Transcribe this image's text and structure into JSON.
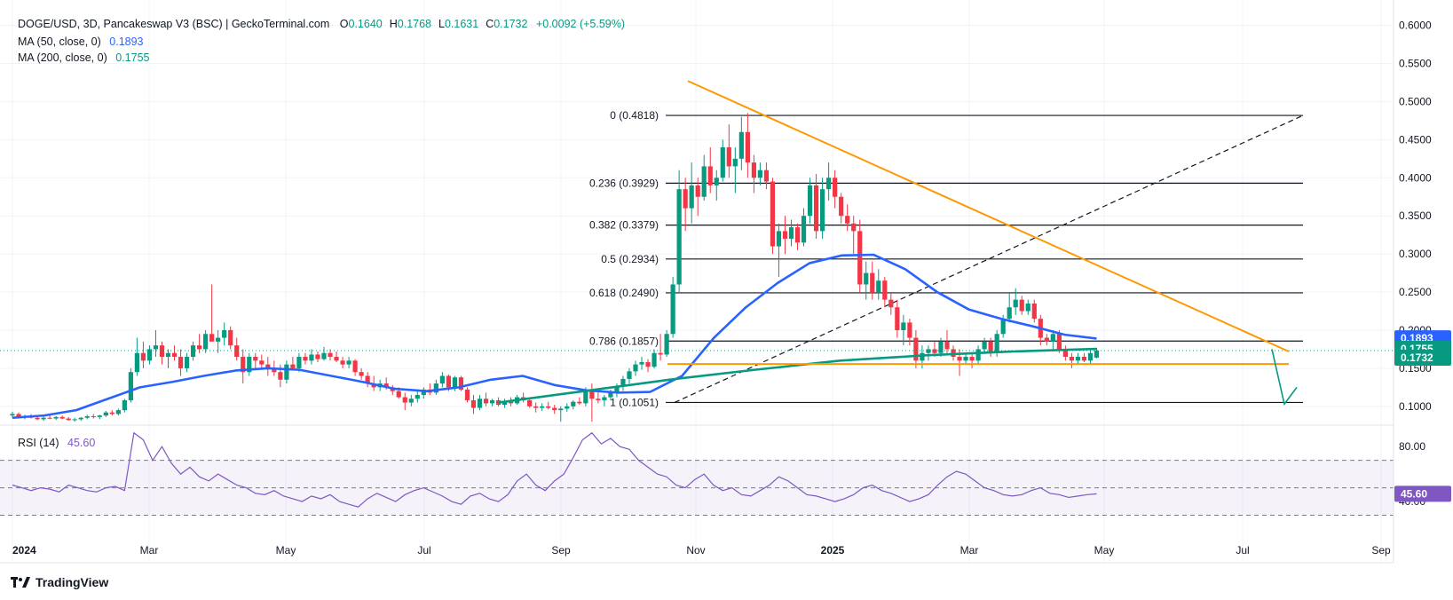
{
  "header": {
    "symbol": "DOGE/USD, 3D, Pancakeswap V3 (BSC) | GeckoTerminal.com",
    "ohlc": [
      {
        "k": "O",
        "v": "0.1640"
      },
      {
        "k": "H",
        "v": "0.1768"
      },
      {
        "k": "L",
        "v": "0.1631"
      },
      {
        "k": "C",
        "v": "0.1732"
      }
    ],
    "change": "+0.0092 (+5.59%)",
    "ma50": {
      "label": "MA (50, close, 0)",
      "value": "0.1893"
    },
    "ma200": {
      "label": "MA (200, close, 0)",
      "value": "0.1755"
    },
    "rsi": {
      "label": "RSI (14)",
      "value": "45.60"
    }
  },
  "brand": "TradingView",
  "colors": {
    "up": "#089981",
    "down": "#f23645",
    "ma50": "#2962ff",
    "ma200": "#089981",
    "orange": "#ff9800",
    "rsi": "#7e57c2",
    "grid": "#f0f3fa"
  },
  "price_axis": {
    "labels": [
      "0.6000",
      "0.5500",
      "0.5000",
      "0.4500",
      "0.4000",
      "0.3500",
      "0.3000",
      "0.2500",
      "0.2000",
      "0.1500",
      "0.1000"
    ],
    "badges": [
      {
        "text": "0.1893",
        "color": "#2962ff"
      },
      {
        "text": "0.1755",
        "color": "#089981"
      },
      {
        "text": "0.1732",
        "color": "#089981"
      }
    ]
  },
  "rsi_axis": {
    "labels": [
      "80.00",
      "40.00"
    ],
    "badge": "45.60"
  },
  "time_axis": [
    "2024",
    "Mar",
    "May",
    "Jul",
    "Sep",
    "Nov",
    "2025",
    "Mar",
    "May",
    "Jul",
    "Sep"
  ],
  "fib_levels": [
    {
      "label": "0 (0.4818)",
      "price": 0.4818
    },
    {
      "label": "0.236 (0.3929)",
      "price": 0.3929
    },
    {
      "label": "0.382 (0.3379)",
      "price": 0.3379
    },
    {
      "label": "0.5 (0.2934)",
      "price": 0.2934
    },
    {
      "label": "0.618 (0.2490)",
      "price": 0.249
    },
    {
      "label": "0.786 (0.1857)",
      "price": 0.1857
    },
    {
      "label": "1 (0.1051)",
      "price": 0.1051
    }
  ],
  "chart_data": {
    "type": "candlestick",
    "timeframe": "3D",
    "ylim": [
      0.08,
      0.61
    ],
    "candles": [
      [
        0.088,
        0.093,
        0.085,
        0.09
      ],
      [
        0.09,
        0.092,
        0.084,
        0.086
      ],
      [
        0.086,
        0.089,
        0.083,
        0.087
      ],
      [
        0.087,
        0.09,
        0.084,
        0.085
      ],
      [
        0.085,
        0.088,
        0.082,
        0.083
      ],
      [
        0.083,
        0.087,
        0.081,
        0.085
      ],
      [
        0.085,
        0.088,
        0.083,
        0.084
      ],
      [
        0.084,
        0.087,
        0.082,
        0.086
      ],
      [
        0.086,
        0.088,
        0.083,
        0.084
      ],
      [
        0.084,
        0.086,
        0.081,
        0.082
      ],
      [
        0.082,
        0.085,
        0.08,
        0.083
      ],
      [
        0.083,
        0.086,
        0.081,
        0.085
      ],
      [
        0.085,
        0.089,
        0.083,
        0.087
      ],
      [
        0.087,
        0.09,
        0.084,
        0.086
      ],
      [
        0.086,
        0.089,
        0.083,
        0.088
      ],
      [
        0.088,
        0.094,
        0.086,
        0.092
      ],
      [
        0.092,
        0.095,
        0.088,
        0.09
      ],
      [
        0.09,
        0.097,
        0.088,
        0.095
      ],
      [
        0.095,
        0.11,
        0.092,
        0.108
      ],
      [
        0.108,
        0.15,
        0.105,
        0.145
      ],
      [
        0.145,
        0.19,
        0.14,
        0.17
      ],
      [
        0.17,
        0.185,
        0.15,
        0.16
      ],
      [
        0.16,
        0.18,
        0.155,
        0.175
      ],
      [
        0.175,
        0.2,
        0.165,
        0.18
      ],
      [
        0.18,
        0.185,
        0.155,
        0.165
      ],
      [
        0.165,
        0.175,
        0.15,
        0.17
      ],
      [
        0.17,
        0.18,
        0.16,
        0.165
      ],
      [
        0.165,
        0.175,
        0.14,
        0.15
      ],
      [
        0.15,
        0.17,
        0.145,
        0.165
      ],
      [
        0.165,
        0.185,
        0.16,
        0.18
      ],
      [
        0.18,
        0.195,
        0.17,
        0.175
      ],
      [
        0.175,
        0.2,
        0.17,
        0.195
      ],
      [
        0.195,
        0.26,
        0.19,
        0.185
      ],
      [
        0.185,
        0.2,
        0.17,
        0.19
      ],
      [
        0.19,
        0.21,
        0.18,
        0.2
      ],
      [
        0.2,
        0.205,
        0.175,
        0.18
      ],
      [
        0.18,
        0.19,
        0.16,
        0.165
      ],
      [
        0.165,
        0.175,
        0.13,
        0.145
      ],
      [
        0.145,
        0.17,
        0.14,
        0.165
      ],
      [
        0.165,
        0.17,
        0.15,
        0.16
      ],
      [
        0.16,
        0.168,
        0.15,
        0.155
      ],
      [
        0.155,
        0.165,
        0.14,
        0.15
      ],
      [
        0.15,
        0.16,
        0.14,
        0.145
      ],
      [
        0.145,
        0.155,
        0.125,
        0.135
      ],
      [
        0.135,
        0.16,
        0.13,
        0.155
      ],
      [
        0.155,
        0.165,
        0.15,
        0.15
      ],
      [
        0.15,
        0.17,
        0.145,
        0.165
      ],
      [
        0.165,
        0.17,
        0.155,
        0.16
      ],
      [
        0.16,
        0.175,
        0.155,
        0.168
      ],
      [
        0.168,
        0.172,
        0.158,
        0.162
      ],
      [
        0.162,
        0.178,
        0.16,
        0.17
      ],
      [
        0.17,
        0.175,
        0.16,
        0.165
      ],
      [
        0.165,
        0.172,
        0.158,
        0.16
      ],
      [
        0.16,
        0.165,
        0.15,
        0.155
      ],
      [
        0.155,
        0.165,
        0.15,
        0.16
      ],
      [
        0.16,
        0.162,
        0.14,
        0.145
      ],
      [
        0.145,
        0.15,
        0.135,
        0.14
      ],
      [
        0.14,
        0.145,
        0.125,
        0.13
      ],
      [
        0.13,
        0.14,
        0.12,
        0.125
      ],
      [
        0.125,
        0.135,
        0.12,
        0.13
      ],
      [
        0.13,
        0.138,
        0.122,
        0.125
      ],
      [
        0.125,
        0.128,
        0.115,
        0.12
      ],
      [
        0.12,
        0.125,
        0.11,
        0.112
      ],
      [
        0.112,
        0.118,
        0.095,
        0.105
      ],
      [
        0.105,
        0.115,
        0.1,
        0.11
      ],
      [
        0.11,
        0.12,
        0.105,
        0.115
      ],
      [
        0.115,
        0.125,
        0.11,
        0.122
      ],
      [
        0.122,
        0.13,
        0.115,
        0.118
      ],
      [
        0.118,
        0.135,
        0.115,
        0.13
      ],
      [
        0.13,
        0.145,
        0.125,
        0.14
      ],
      [
        0.14,
        0.142,
        0.12,
        0.125
      ],
      [
        0.125,
        0.14,
        0.12,
        0.138
      ],
      [
        0.138,
        0.14,
        0.12,
        0.122
      ],
      [
        0.122,
        0.125,
        0.105,
        0.108
      ],
      [
        0.108,
        0.115,
        0.09,
        0.098
      ],
      [
        0.098,
        0.115,
        0.095,
        0.11
      ],
      [
        0.11,
        0.118,
        0.1,
        0.104
      ],
      [
        0.104,
        0.11,
        0.1,
        0.108
      ],
      [
        0.108,
        0.112,
        0.1,
        0.102
      ],
      [
        0.102,
        0.11,
        0.098,
        0.106
      ],
      [
        0.106,
        0.112,
        0.1,
        0.104
      ],
      [
        0.104,
        0.115,
        0.102,
        0.112
      ],
      [
        0.112,
        0.118,
        0.105,
        0.108
      ],
      [
        0.108,
        0.11,
        0.098,
        0.1
      ],
      [
        0.1,
        0.105,
        0.092,
        0.098
      ],
      [
        0.098,
        0.104,
        0.094,
        0.1
      ],
      [
        0.1,
        0.106,
        0.096,
        0.098
      ],
      [
        0.098,
        0.102,
        0.09,
        0.095
      ],
      [
        0.095,
        0.1,
        0.08,
        0.097
      ],
      [
        0.097,
        0.104,
        0.093,
        0.1
      ],
      [
        0.1,
        0.108,
        0.096,
        0.106
      ],
      [
        0.106,
        0.112,
        0.102,
        0.104
      ],
      [
        0.104,
        0.125,
        0.1,
        0.12
      ],
      [
        0.12,
        0.13,
        0.08,
        0.11
      ],
      [
        0.11,
        0.12,
        0.104,
        0.108
      ],
      [
        0.108,
        0.115,
        0.1,
        0.112
      ],
      [
        0.112,
        0.122,
        0.108,
        0.118
      ],
      [
        0.118,
        0.13,
        0.112,
        0.126
      ],
      [
        0.126,
        0.14,
        0.12,
        0.136
      ],
      [
        0.136,
        0.15,
        0.13,
        0.146
      ],
      [
        0.146,
        0.16,
        0.14,
        0.155
      ],
      [
        0.155,
        0.165,
        0.148,
        0.158
      ],
      [
        0.158,
        0.162,
        0.145,
        0.152
      ],
      [
        0.152,
        0.175,
        0.15,
        0.17
      ],
      [
        0.17,
        0.195,
        0.16,
        0.168
      ],
      [
        0.168,
        0.2,
        0.165,
        0.195
      ],
      [
        0.195,
        0.27,
        0.19,
        0.26
      ],
      [
        0.26,
        0.41,
        0.25,
        0.385
      ],
      [
        0.385,
        0.4,
        0.33,
        0.36
      ],
      [
        0.36,
        0.42,
        0.34,
        0.39
      ],
      [
        0.39,
        0.4,
        0.35,
        0.375
      ],
      [
        0.375,
        0.43,
        0.37,
        0.415
      ],
      [
        0.415,
        0.44,
        0.38,
        0.39
      ],
      [
        0.39,
        0.41,
        0.37,
        0.4
      ],
      [
        0.4,
        0.45,
        0.395,
        0.44
      ],
      [
        0.44,
        0.47,
        0.4,
        0.415
      ],
      [
        0.415,
        0.44,
        0.38,
        0.425
      ],
      [
        0.425,
        0.48,
        0.41,
        0.46
      ],
      [
        0.46,
        0.485,
        0.4,
        0.42
      ],
      [
        0.42,
        0.43,
        0.38,
        0.4
      ],
      [
        0.4,
        0.42,
        0.39,
        0.41
      ],
      [
        0.41,
        0.42,
        0.385,
        0.395
      ],
      [
        0.395,
        0.4,
        0.3,
        0.31
      ],
      [
        0.31,
        0.34,
        0.27,
        0.33
      ],
      [
        0.33,
        0.35,
        0.3,
        0.32
      ],
      [
        0.32,
        0.345,
        0.31,
        0.335
      ],
      [
        0.335,
        0.34,
        0.305,
        0.315
      ],
      [
        0.315,
        0.36,
        0.31,
        0.35
      ],
      [
        0.35,
        0.4,
        0.34,
        0.39
      ],
      [
        0.39,
        0.405,
        0.32,
        0.33
      ],
      [
        0.33,
        0.4,
        0.32,
        0.385
      ],
      [
        0.385,
        0.42,
        0.37,
        0.4
      ],
      [
        0.4,
        0.41,
        0.36,
        0.375
      ],
      [
        0.375,
        0.38,
        0.34,
        0.35
      ],
      [
        0.35,
        0.365,
        0.33,
        0.34
      ],
      [
        0.34,
        0.35,
        0.3,
        0.33
      ],
      [
        0.33,
        0.345,
        0.25,
        0.26
      ],
      [
        0.26,
        0.29,
        0.24,
        0.275
      ],
      [
        0.275,
        0.29,
        0.24,
        0.25
      ],
      [
        0.25,
        0.28,
        0.24,
        0.265
      ],
      [
        0.265,
        0.27,
        0.23,
        0.24
      ],
      [
        0.24,
        0.25,
        0.22,
        0.23
      ],
      [
        0.23,
        0.24,
        0.19,
        0.2
      ],
      [
        0.2,
        0.22,
        0.18,
        0.21
      ],
      [
        0.21,
        0.215,
        0.18,
        0.19
      ],
      [
        0.19,
        0.2,
        0.15,
        0.16
      ],
      [
        0.16,
        0.18,
        0.15,
        0.17
      ],
      [
        0.17,
        0.18,
        0.16,
        0.175
      ],
      [
        0.175,
        0.185,
        0.165,
        0.17
      ],
      [
        0.17,
        0.19,
        0.165,
        0.185
      ],
      [
        0.185,
        0.2,
        0.17,
        0.175
      ],
      [
        0.175,
        0.18,
        0.16,
        0.165
      ],
      [
        0.165,
        0.175,
        0.14,
        0.16
      ],
      [
        0.16,
        0.17,
        0.155,
        0.165
      ],
      [
        0.165,
        0.17,
        0.15,
        0.16
      ],
      [
        0.16,
        0.18,
        0.155,
        0.175
      ],
      [
        0.175,
        0.19,
        0.17,
        0.185
      ],
      [
        0.185,
        0.19,
        0.165,
        0.17
      ],
      [
        0.17,
        0.2,
        0.165,
        0.195
      ],
      [
        0.195,
        0.22,
        0.19,
        0.215
      ],
      [
        0.215,
        0.25,
        0.21,
        0.23
      ],
      [
        0.23,
        0.255,
        0.22,
        0.24
      ],
      [
        0.24,
        0.245,
        0.22,
        0.225
      ],
      [
        0.225,
        0.24,
        0.22,
        0.235
      ],
      [
        0.235,
        0.24,
        0.21,
        0.215
      ],
      [
        0.215,
        0.22,
        0.18,
        0.19
      ],
      [
        0.19,
        0.195,
        0.18,
        0.185
      ],
      [
        0.185,
        0.2,
        0.175,
        0.195
      ],
      [
        0.195,
        0.2,
        0.17,
        0.175
      ],
      [
        0.175,
        0.18,
        0.16,
        0.165
      ],
      [
        0.165,
        0.17,
        0.15,
        0.16
      ],
      [
        0.16,
        0.17,
        0.155,
        0.165
      ],
      [
        0.165,
        0.17,
        0.158,
        0.16
      ],
      [
        0.16,
        0.175,
        0.155,
        0.17
      ],
      [
        0.164,
        0.1768,
        0.1631,
        0.1732
      ]
    ],
    "ma50": [
      0.085,
      0.088,
      0.095,
      0.11,
      0.125,
      0.132,
      0.14,
      0.147,
      0.15,
      0.148,
      0.14,
      0.132,
      0.123,
      0.12,
      0.125,
      0.135,
      0.14,
      0.128,
      0.121,
      0.118,
      0.119,
      0.14,
      0.19,
      0.23,
      0.262,
      0.288,
      0.298,
      0.299,
      0.28,
      0.25,
      0.227,
      0.215,
      0.205,
      0.194,
      0.189
    ],
    "ma200_start_index": 78,
    "ma200": [
      0.105,
      0.12,
      0.135,
      0.148,
      0.16,
      0.167,
      0.172,
      0.1755
    ],
    "rsi_ylim": [
      20,
      95
    ],
    "rsi_levels": [
      70,
      50,
      30
    ],
    "rsi": [
      52,
      50,
      48,
      50,
      49,
      47,
      52,
      50,
      48,
      47,
      50,
      51,
      48,
      90,
      85,
      70,
      80,
      68,
      60,
      65,
      58,
      55,
      60,
      56,
      52,
      50,
      46,
      45,
      48,
      44,
      42,
      40,
      44,
      42,
      45,
      40,
      38,
      36,
      42,
      46,
      43,
      40,
      45,
      48,
      50,
      47,
      44,
      40,
      38,
      44,
      46,
      42,
      40,
      45,
      55,
      60,
      52,
      48,
      55,
      60,
      72,
      85,
      90,
      82,
      86,
      80,
      78,
      70,
      65,
      60,
      58,
      52,
      50,
      56,
      60,
      52,
      48,
      50,
      45,
      44,
      48,
      52,
      58,
      55,
      50,
      45,
      44,
      42,
      40,
      42,
      45,
      50,
      52,
      48,
      46,
      43,
      40,
      42,
      45,
      52,
      58,
      62,
      60,
      55,
      50,
      48,
      45,
      44,
      45,
      48,
      50,
      46,
      45,
      43,
      44,
      45,
      45.6
    ]
  }
}
